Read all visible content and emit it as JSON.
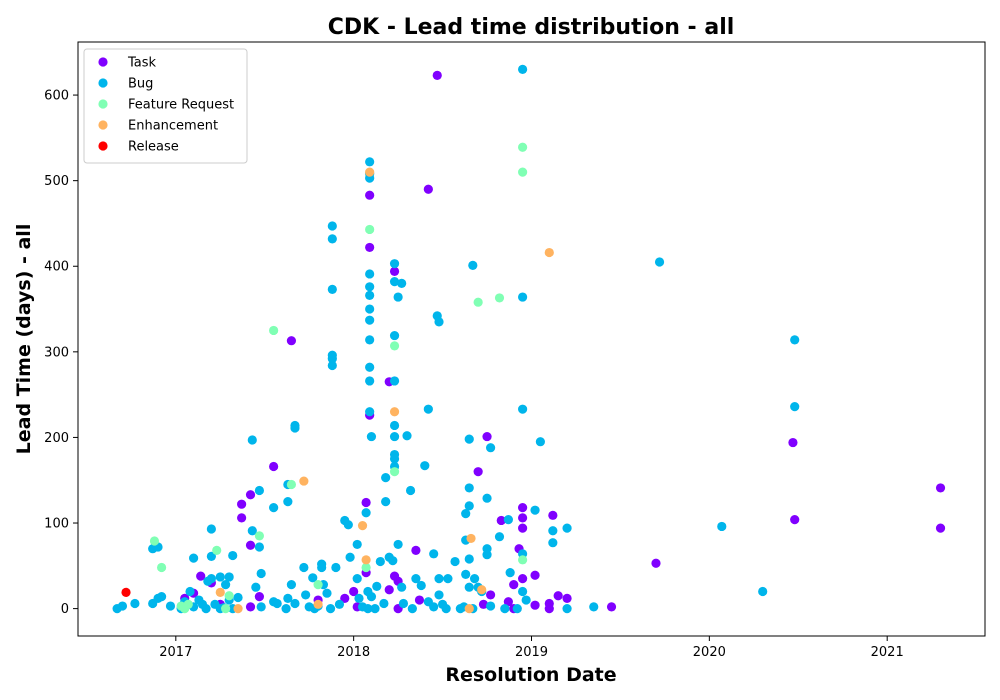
{
  "chart_data": {
    "type": "scatter",
    "title": "CDK - Lead time distribution - all",
    "xlabel": "Resolution Date",
    "ylabel": "Lead Time (days) - all",
    "xlim": [
      2016.45,
      2021.55
    ],
    "ylim": [
      -32,
      662
    ],
    "x_ticks": [
      2017,
      2018,
      2019,
      2020,
      2021
    ],
    "y_ticks": [
      0,
      100,
      200,
      300,
      400,
      500,
      600
    ],
    "grid": false,
    "legend_position": "upper left",
    "series": [
      {
        "name": "Task",
        "color": "#8000ff",
        "points": [
          [
            2017.05,
            12
          ],
          [
            2017.1,
            18
          ],
          [
            2017.14,
            38
          ],
          [
            2017.2,
            30
          ],
          [
            2017.25,
            5
          ],
          [
            2017.37,
            122
          ],
          [
            2017.37,
            106
          ],
          [
            2017.42,
            133
          ],
          [
            2017.42,
            74
          ],
          [
            2017.42,
            2
          ],
          [
            2017.47,
            14
          ],
          [
            2017.55,
            166
          ],
          [
            2017.65,
            313
          ],
          [
            2017.8,
            10
          ],
          [
            2017.95,
            12
          ],
          [
            2018.0,
            20
          ],
          [
            2018.02,
            2
          ],
          [
            2018.07,
            124
          ],
          [
            2018.07,
            42
          ],
          [
            2018.09,
            483
          ],
          [
            2018.09,
            422
          ],
          [
            2018.09,
            226
          ],
          [
            2018.2,
            265
          ],
          [
            2018.2,
            22
          ],
          [
            2018.23,
            394
          ],
          [
            2018.25,
            0
          ],
          [
            2018.23,
            38
          ],
          [
            2018.25,
            32
          ],
          [
            2018.35,
            68
          ],
          [
            2018.37,
            10
          ],
          [
            2018.42,
            490
          ],
          [
            2018.47,
            623
          ],
          [
            2018.7,
            160
          ],
          [
            2018.75,
            201
          ],
          [
            2018.77,
            16
          ],
          [
            2018.73,
            5
          ],
          [
            2018.83,
            103
          ],
          [
            2018.87,
            8
          ],
          [
            2018.9,
            0
          ],
          [
            2018.9,
            28
          ],
          [
            2018.93,
            70
          ],
          [
            2018.95,
            118
          ],
          [
            2018.95,
            94
          ],
          [
            2018.95,
            106
          ],
          [
            2018.95,
            35
          ],
          [
            2019.02,
            4
          ],
          [
            2019.02,
            39
          ],
          [
            2019.1,
            0
          ],
          [
            2019.1,
            6
          ],
          [
            2019.12,
            109
          ],
          [
            2019.15,
            15
          ],
          [
            2019.2,
            12
          ],
          [
            2019.45,
            2
          ],
          [
            2019.7,
            53
          ],
          [
            2020.47,
            194
          ],
          [
            2020.48,
            104
          ],
          [
            2021.3,
            141
          ],
          [
            2021.3,
            94
          ]
        ]
      },
      {
        "name": "Bug",
        "color": "#00b5eb",
        "points": [
          [
            2016.67,
            0
          ],
          [
            2016.7,
            3
          ],
          [
            2016.77,
            6
          ],
          [
            2016.87,
            70
          ],
          [
            2016.9,
            72
          ],
          [
            2016.87,
            6
          ],
          [
            2016.9,
            12
          ],
          [
            2016.92,
            14
          ],
          [
            2016.97,
            3
          ],
          [
            2017.03,
            0
          ],
          [
            2017.05,
            8
          ],
          [
            2017.08,
            20
          ],
          [
            2017.1,
            59
          ],
          [
            2017.1,
            2
          ],
          [
            2017.13,
            10
          ],
          [
            2017.15,
            5
          ],
          [
            2017.17,
            0
          ],
          [
            2017.18,
            32
          ],
          [
            2017.2,
            93
          ],
          [
            2017.2,
            61
          ],
          [
            2017.2,
            35
          ],
          [
            2017.22,
            5
          ],
          [
            2017.25,
            37
          ],
          [
            2017.25,
            0
          ],
          [
            2017.27,
            1
          ],
          [
            2017.28,
            28
          ],
          [
            2017.3,
            37
          ],
          [
            2017.3,
            10
          ],
          [
            2017.32,
            0
          ],
          [
            2017.32,
            62
          ],
          [
            2017.35,
            13
          ],
          [
            2017.43,
            197
          ],
          [
            2017.43,
            91
          ],
          [
            2017.45,
            25
          ],
          [
            2017.47,
            138
          ],
          [
            2017.47,
            72
          ],
          [
            2017.48,
            41
          ],
          [
            2017.48,
            2
          ],
          [
            2017.55,
            118
          ],
          [
            2017.55,
            8
          ],
          [
            2017.57,
            6
          ],
          [
            2017.62,
            0
          ],
          [
            2017.63,
            145
          ],
          [
            2017.63,
            125
          ],
          [
            2017.63,
            12
          ],
          [
            2017.65,
            28
          ],
          [
            2017.67,
            214
          ],
          [
            2017.67,
            211
          ],
          [
            2017.67,
            6
          ],
          [
            2017.72,
            48
          ],
          [
            2017.73,
            16
          ],
          [
            2017.75,
            2
          ],
          [
            2017.77,
            36
          ],
          [
            2017.78,
            0
          ],
          [
            2017.8,
            3
          ],
          [
            2017.82,
            52
          ],
          [
            2017.82,
            48
          ],
          [
            2017.83,
            28
          ],
          [
            2017.85,
            18
          ],
          [
            2017.87,
            0
          ],
          [
            2017.88,
            447
          ],
          [
            2017.88,
            432
          ],
          [
            2017.88,
            373
          ],
          [
            2017.88,
            296
          ],
          [
            2017.88,
            292
          ],
          [
            2017.88,
            284
          ],
          [
            2017.9,
            48
          ],
          [
            2017.92,
            5
          ],
          [
            2017.95,
            103
          ],
          [
            2017.97,
            98
          ],
          [
            2017.98,
            60
          ],
          [
            2018.02,
            75
          ],
          [
            2018.02,
            35
          ],
          [
            2018.03,
            12
          ],
          [
            2018.05,
            2
          ],
          [
            2018.07,
            112
          ],
          [
            2018.08,
            20
          ],
          [
            2018.08,
            0
          ],
          [
            2018.09,
            522
          ],
          [
            2018.09,
            508
          ],
          [
            2018.09,
            503
          ],
          [
            2018.09,
            391
          ],
          [
            2018.09,
            376
          ],
          [
            2018.09,
            366
          ],
          [
            2018.09,
            350
          ],
          [
            2018.09,
            337
          ],
          [
            2018.09,
            314
          ],
          [
            2018.09,
            282
          ],
          [
            2018.09,
            266
          ],
          [
            2018.09,
            230
          ],
          [
            2018.1,
            201
          ],
          [
            2018.1,
            14
          ],
          [
            2018.12,
            0
          ],
          [
            2018.13,
            26
          ],
          [
            2018.15,
            55
          ],
          [
            2018.17,
            6
          ],
          [
            2018.18,
            153
          ],
          [
            2018.18,
            125
          ],
          [
            2018.2,
            60
          ],
          [
            2018.22,
            56
          ],
          [
            2018.23,
            403
          ],
          [
            2018.23,
            382
          ],
          [
            2018.23,
            319
          ],
          [
            2018.23,
            266
          ],
          [
            2018.23,
            214
          ],
          [
            2018.23,
            201
          ],
          [
            2018.23,
            180
          ],
          [
            2018.23,
            175
          ],
          [
            2018.23,
            166
          ],
          [
            2018.25,
            364
          ],
          [
            2018.25,
            75
          ],
          [
            2018.27,
            380
          ],
          [
            2018.27,
            25
          ],
          [
            2018.28,
            6
          ],
          [
            2018.3,
            202
          ],
          [
            2018.32,
            138
          ],
          [
            2018.33,
            0
          ],
          [
            2018.35,
            35
          ],
          [
            2018.38,
            27
          ],
          [
            2018.4,
            167
          ],
          [
            2018.42,
            233
          ],
          [
            2018.42,
            8
          ],
          [
            2018.45,
            64
          ],
          [
            2018.45,
            2
          ],
          [
            2018.47,
            342
          ],
          [
            2018.48,
            335
          ],
          [
            2018.48,
            35
          ],
          [
            2018.48,
            16
          ],
          [
            2018.5,
            5
          ],
          [
            2018.52,
            0
          ],
          [
            2018.53,
            35
          ],
          [
            2018.57,
            55
          ],
          [
            2018.6,
            0
          ],
          [
            2018.62,
            2
          ],
          [
            2018.63,
            111
          ],
          [
            2018.63,
            80
          ],
          [
            2018.63,
            40
          ],
          [
            2018.65,
            198
          ],
          [
            2018.65,
            141
          ],
          [
            2018.65,
            120
          ],
          [
            2018.65,
            58
          ],
          [
            2018.65,
            25
          ],
          [
            2018.67,
            401
          ],
          [
            2018.67,
            0
          ],
          [
            2018.68,
            35
          ],
          [
            2018.7,
            25
          ],
          [
            2018.72,
            20
          ],
          [
            2018.75,
            129
          ],
          [
            2018.75,
            70
          ],
          [
            2018.75,
            63
          ],
          [
            2018.77,
            188
          ],
          [
            2018.77,
            3
          ],
          [
            2018.82,
            84
          ],
          [
            2018.85,
            0
          ],
          [
            2018.87,
            104
          ],
          [
            2018.88,
            42
          ],
          [
            2018.92,
            0
          ],
          [
            2018.95,
            630
          ],
          [
            2018.95,
            364
          ],
          [
            2018.95,
            233
          ],
          [
            2018.95,
            64
          ],
          [
            2018.95,
            20
          ],
          [
            2018.97,
            10
          ],
          [
            2019.02,
            115
          ],
          [
            2019.05,
            195
          ],
          [
            2019.12,
            91
          ],
          [
            2019.12,
            77
          ],
          [
            2019.2,
            94
          ],
          [
            2019.2,
            0
          ],
          [
            2019.35,
            2
          ],
          [
            2019.72,
            405
          ],
          [
            2020.07,
            96
          ],
          [
            2020.3,
            20
          ],
          [
            2020.48,
            314
          ],
          [
            2020.48,
            236
          ]
        ]
      },
      {
        "name": "Feature Request",
        "color": "#80ffb4",
        "points": [
          [
            2016.88,
            79
          ],
          [
            2016.92,
            48
          ],
          [
            2017.03,
            3
          ],
          [
            2017.05,
            0
          ],
          [
            2017.07,
            5
          ],
          [
            2017.23,
            68
          ],
          [
            2017.28,
            0
          ],
          [
            2017.3,
            15
          ],
          [
            2017.47,
            85
          ],
          [
            2017.55,
            325
          ],
          [
            2017.65,
            145
          ],
          [
            2017.8,
            28
          ],
          [
            2018.07,
            48
          ],
          [
            2018.09,
            443
          ],
          [
            2018.23,
            307
          ],
          [
            2018.23,
            160
          ],
          [
            2018.7,
            358
          ],
          [
            2018.82,
            363
          ],
          [
            2018.95,
            539
          ],
          [
            2018.95,
            510
          ],
          [
            2018.95,
            57
          ]
        ]
      },
      {
        "name": "Enhancement",
        "color": "#ffb360",
        "points": [
          [
            2017.25,
            19
          ],
          [
            2017.35,
            0
          ],
          [
            2017.72,
            149
          ],
          [
            2017.8,
            5
          ],
          [
            2018.05,
            97
          ],
          [
            2018.07,
            57
          ],
          [
            2018.09,
            510
          ],
          [
            2018.23,
            230
          ],
          [
            2018.65,
            0
          ],
          [
            2018.66,
            82
          ],
          [
            2018.72,
            22
          ],
          [
            2019.1,
            416
          ]
        ]
      },
      {
        "name": "Release",
        "color": "#ff0000",
        "points": [
          [
            2016.72,
            19
          ]
        ]
      }
    ]
  }
}
